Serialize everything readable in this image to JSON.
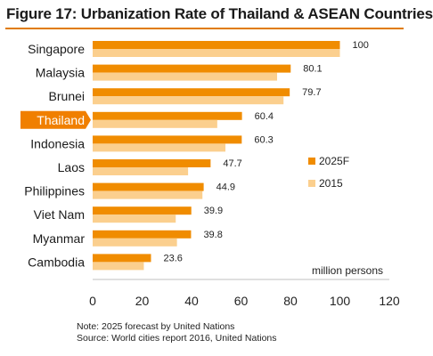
{
  "title": "Figure 17: Urbanization  Rate of Thailand  & ASEAN Countries",
  "note_lines": [
    "Note: 2025 forecast by United Nations",
    "Source: World cities report 2016, United Nations"
  ],
  "colors": {
    "series_2025": "#f08c00",
    "series_2015": "#fbcf8e",
    "highlight_bg": "#f07f00",
    "title_rule": "#e07b00"
  },
  "chart_data": {
    "type": "bar",
    "orientation": "horizontal",
    "categories": [
      "Singapore",
      "Malaysia",
      "Brunei",
      "Thailand",
      "Indonesia",
      "Laos",
      "Philippines",
      "Viet Nam",
      "Myanmar",
      "Cambodia"
    ],
    "highlight_category": "Thailand",
    "series": [
      {
        "name": "2025F",
        "values": [
          100,
          80.1,
          79.7,
          60.4,
          60.3,
          47.7,
          44.9,
          39.9,
          39.8,
          23.6
        ]
      },
      {
        "name": "2015",
        "values": [
          100,
          74.6,
          77.2,
          50.4,
          53.7,
          38.6,
          44.4,
          33.6,
          34.1,
          20.7
        ]
      }
    ],
    "data_labels": [
      "100",
      "80.1",
      "79.7",
      "60.4",
      "60.3",
      "47.7",
      "44.9",
      "39.9",
      "39.8",
      "23.6"
    ],
    "unit_label": "million persons",
    "xlim": [
      0,
      120
    ],
    "xticks": [
      0,
      20,
      40,
      60,
      80,
      100,
      120
    ],
    "legend": [
      "2025F",
      "2015"
    ],
    "legend_position": "right",
    "grid": false
  }
}
